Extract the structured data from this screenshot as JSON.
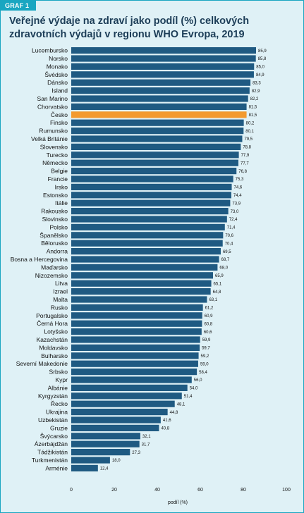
{
  "header": {
    "badge": "GRAF 1",
    "title": "Veřejné výdaje na zdraví jako podíl (%) celkových zdravotních výdajů v regionu WHO Evropa, 2019"
  },
  "colors": {
    "bar": "#1f5a82",
    "highlight": "#f39a2e",
    "frame": "#19a6c1",
    "background": "#dff1f6"
  },
  "chart_data": {
    "type": "bar",
    "orientation": "horizontal",
    "title": "Veřejné výdaje na zdraví jako podíl (%) celkových zdravotních výdajů v regionu WHO Evropa, 2019",
    "xlabel": "podíl (%)",
    "ylabel": "",
    "xlim": [
      0,
      100
    ],
    "xticks": [
      0,
      20,
      40,
      60,
      80,
      100
    ],
    "highlighted": "Česko",
    "grid": false,
    "categories": [
      "Lucembursko",
      "Norsko",
      "Monako",
      "Švédsko",
      "Dánsko",
      "Island",
      "San Marino",
      "Chorvatsko",
      "Česko",
      "Finsko",
      "Rumunsko",
      "Velká Británie",
      "Slovensko",
      "Turecko",
      "Německo",
      "Belgie",
      "Francie",
      "Irsko",
      "Estonsko",
      "Itálie",
      "Rakousko",
      "Slovinsko",
      "Polsko",
      "Španělsko",
      "Bělorusko",
      "Andorra",
      "Bosna a Hercegovina",
      "Maďarsko",
      "Nizozemsko",
      "Litva",
      "Izrael",
      "Malta",
      "Rusko",
      "Portugalsko",
      "Černá Hora",
      "Lotyšsko",
      "Kazachstán",
      "Moldavsko",
      "Bulharsko",
      "Severní Makedonie",
      "Srbsko",
      "Kypr",
      "Albánie",
      "Kyrgyzstán",
      "Řecko",
      "Ukrajina",
      "Uzbekistán",
      "Gruzie",
      "Švýcarsko",
      "Ázerbájdžán",
      "Tádžikistán",
      "Turkmenistán",
      "Arménie"
    ],
    "values": [
      85.9,
      85.8,
      85.0,
      84.9,
      83.3,
      82.9,
      82.2,
      81.5,
      81.5,
      80.2,
      80.1,
      79.5,
      78.8,
      77.9,
      77.7,
      76.8,
      75.3,
      74.6,
      74.4,
      73.9,
      73.0,
      72.4,
      71.4,
      70.6,
      70.4,
      69.5,
      68.7,
      68.0,
      65.9,
      65.1,
      64.8,
      63.1,
      61.2,
      60.9,
      60.8,
      60.6,
      59.9,
      59.7,
      59.2,
      59.0,
      58.4,
      56.0,
      54.0,
      51.4,
      48.1,
      44.8,
      41.6,
      40.8,
      32.1,
      31.7,
      27.3,
      18.0,
      12.4
    ],
    "value_labels": [
      "85,9",
      "85,8",
      "85,0",
      "84,9",
      "83,3",
      "82,9",
      "82,2",
      "81,5",
      "81,5",
      "80,2",
      "80,1",
      "79,5",
      "78,8",
      "77,9",
      "77,7",
      "76,8",
      "75,3",
      "74,6",
      "74,4",
      "73,9",
      "73,0",
      "72,4",
      "71,4",
      "70,6",
      "70,4",
      "69,5",
      "68,7",
      "68,0",
      "65,9",
      "65,1",
      "64,8",
      "63,1",
      "61,2",
      "60,9",
      "60,8",
      "60,6",
      "59,9",
      "59,7",
      "59,2",
      "59,0",
      "58,4",
      "56,0",
      "54,0",
      "51,4",
      "48,1",
      "44,8",
      "41,6",
      "40,8",
      "32,1",
      "31,7",
      "27,3",
      "18,0",
      "12,4"
    ]
  }
}
